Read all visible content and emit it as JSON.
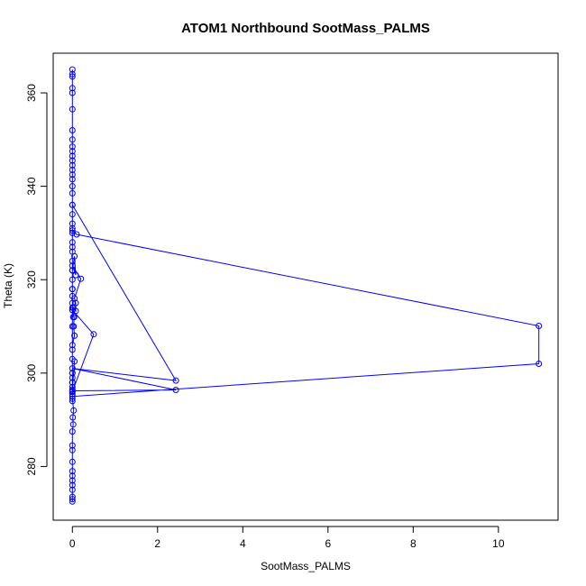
{
  "chart_data": {
    "type": "line",
    "title": "ATOM1 Northbound SootMass_PALMS",
    "xlabel": "SootMass_PALMS",
    "ylabel": "Theta (K)",
    "xlim": [
      -0.45,
      11.4
    ],
    "ylim": [
      268.5,
      368.5
    ],
    "x_ticks": [
      0,
      2,
      4,
      6,
      8,
      10
    ],
    "y_ticks": [
      280,
      300,
      320,
      340,
      360
    ],
    "grid": false,
    "legend": "none",
    "marker": "open-circle",
    "series_color": "#0000ff",
    "x": [
      0.0,
      0.0,
      0.0,
      0.0,
      0.0,
      0.0,
      0.0,
      0.0,
      0.0,
      0.0,
      0.0,
      0.0,
      0.02,
      0.01,
      0.03,
      0.0,
      0.0,
      0.0,
      0.0,
      0.0,
      0.0,
      0.05,
      0.03,
      0.04,
      0.0,
      0.0,
      0.0,
      0.0,
      0.0,
      0.0,
      0.0,
      0.0,
      0.0,
      0.0,
      0.0,
      0.0,
      0.0,
      0.0,
      0.0,
      0.0,
      0.1,
      10.95,
      10.95,
      0.0,
      0.0,
      0.0,
      0.0,
      0.0,
      0.0,
      0.0,
      0.05,
      0.08,
      0.0,
      0.2,
      0.05,
      0.08,
      0.08,
      0.02,
      0.02,
      0.0,
      0.5,
      0.0,
      0.0,
      0.0,
      0.0,
      0.0,
      0.05,
      0.0,
      0.0,
      0.0,
      2.43,
      0.0,
      2.43,
      0.0,
      0.0,
      0.0,
      0.0,
      0.0,
      0.0,
      0.0,
      0.0,
      0.0,
      0.0,
      0.0,
      0.0,
      0.0,
      0.0,
      0.0,
      0.0,
      0.0,
      0.0,
      0.0
    ],
    "y": [
      272.5,
      273.0,
      273.5,
      275.0,
      276.0,
      277.0,
      278.0,
      279.0,
      281.0,
      283.5,
      284.5,
      287.5,
      289.0,
      290.5,
      292.0,
      294.5,
      296.0,
      298.0,
      300.0,
      303.0,
      306.0,
      308.0,
      310.0,
      312.0,
      313.5,
      315.0,
      316.5,
      318.0,
      320.0,
      322.0,
      324.0,
      326.0,
      327.0,
      328.0,
      330.0,
      332.0,
      334.0,
      336.0,
      331.0,
      330.5,
      329.7,
      310.1,
      302.0,
      295.0,
      300.0,
      305.0,
      310.0,
      314.0,
      318.0,
      322.0,
      325.0,
      321.0,
      323.0,
      320.2,
      316.0,
      315.0,
      313.3,
      314.0,
      312.0,
      313.5,
      308.3,
      296.0,
      298.0,
      295.5,
      294.0,
      297.0,
      302.5,
      296.5,
      299.0,
      296.2,
      296.4,
      301.0,
      298.4,
      336.0,
      338.5,
      340.0,
      341.5,
      342.5,
      343.5,
      344.5,
      345.5,
      346.5,
      347.5,
      348.5,
      350.0,
      352.0,
      356.5,
      361.0,
      363.5,
      365.0,
      364.0,
      360.0
    ]
  }
}
